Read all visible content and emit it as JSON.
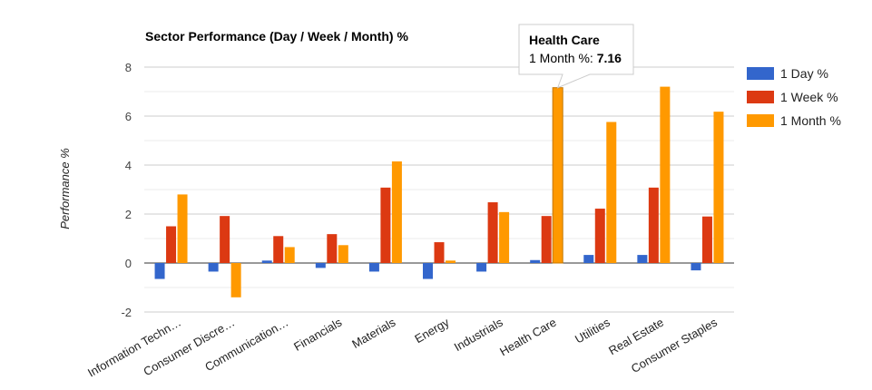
{
  "chart_data": {
    "type": "bar",
    "title": "Sector Performance (Day / Week / Month) %",
    "ylabel": "Performance %",
    "xlabel": "",
    "ylim": [
      -2,
      8
    ],
    "yticks": [
      -2,
      0,
      2,
      4,
      6,
      8
    ],
    "grid": true,
    "legend_position": "right",
    "categories": [
      "Information Techn…",
      "Consumer Discre…",
      "Communication…",
      "Financials",
      "Materials",
      "Energy",
      "Industrials",
      "Health Care",
      "Utilities",
      "Real Estate",
      "Consumer Staples"
    ],
    "series": [
      {
        "name": "1 Day %",
        "color": "#3366cc",
        "values": [
          -0.65,
          -0.35,
          0.1,
          -0.2,
          -0.35,
          -0.65,
          -0.35,
          0.12,
          0.33,
          0.33,
          -0.3
        ]
      },
      {
        "name": "1 Week %",
        "color": "#dc3912",
        "values": [
          1.5,
          1.92,
          1.1,
          1.18,
          3.08,
          0.85,
          2.48,
          1.92,
          2.22,
          3.08,
          1.9
        ]
      },
      {
        "name": "1 Month %",
        "color": "#ff9900",
        "values": [
          2.8,
          -1.4,
          0.65,
          0.73,
          4.15,
          0.1,
          2.08,
          7.16,
          5.76,
          7.2,
          6.18
        ]
      }
    ],
    "tooltip": {
      "category": "Health Care",
      "series_label": "1 Month %:",
      "value": "7.16"
    }
  }
}
